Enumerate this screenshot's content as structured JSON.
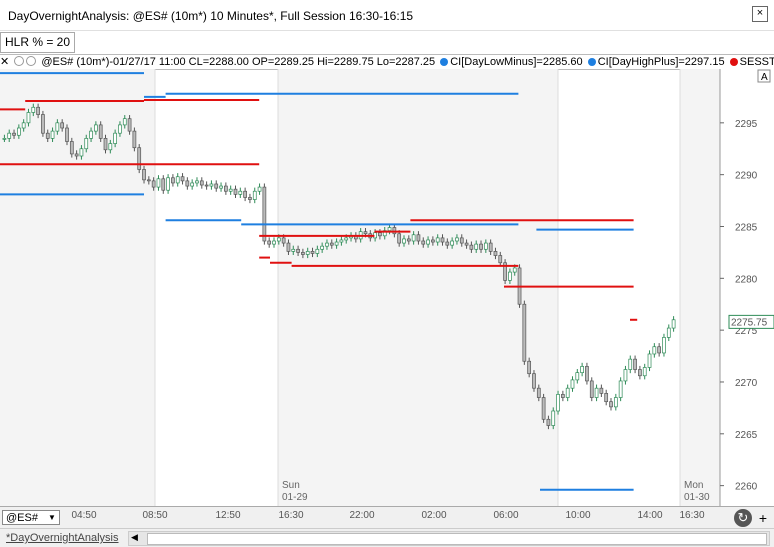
{
  "window": {
    "title": "DayOvernightAnalysis: @ES# (10m*) 10 Minutes*, Full Session 16:30-16:15",
    "close": "×"
  },
  "hlr_label": "HLR % = 20",
  "infobar": {
    "close_glyph": "✕",
    "main": "@ES# (10m*)-01/27/17 11:00 CL=2288.00 OP=2289.25 Hi=2289.75 Lo=2287.25",
    "ind1": "CI[DayLowMinus]=2285.60",
    "ind2": "CI[DayHighPlus]=2297.15",
    "ind3": "SESST[",
    "auto": "A"
  },
  "colors": {
    "up": "#2e8b57",
    "down": "#555555",
    "red": "#e01010",
    "blue": "#1e7fe0",
    "session": "#f4f4f4"
  },
  "chart_data": {
    "type": "candlestick",
    "y_axis": {
      "ticks": [
        2295,
        2290,
        2285,
        2280,
        2275,
        2270,
        2265,
        2260
      ],
      "min": 2259,
      "max": 2300
    },
    "last_price": "2275.75",
    "x_ticks": [
      "04:50",
      "08:50",
      "12:50",
      "16:30",
      "22:00",
      "02:00",
      "06:00",
      "10:00",
      "14:00",
      "16:30"
    ],
    "day_labels": [
      {
        "day": "Sun",
        "date": "01-29"
      },
      {
        "day": "Mon",
        "date": "01-30"
      }
    ],
    "red_lines": [
      {
        "x0": 0,
        "x1": 0.035,
        "y": 2296.3
      },
      {
        "x0": 0.035,
        "x1": 0.2,
        "y": 2297.1
      },
      {
        "x0": 0.2,
        "x1": 0.36,
        "y": 2297.2
      },
      {
        "x0": 0,
        "x1": 0.36,
        "y": 2291.0
      },
      {
        "x0": 0.36,
        "x1": 0.375,
        "y": 2282.0
      },
      {
        "x0": 0.375,
        "x1": 0.405,
        "y": 2281.5
      },
      {
        "x0": 0.405,
        "x1": 0.72,
        "y": 2281.2
      },
      {
        "x0": 0.36,
        "x1": 0.52,
        "y": 2284.1
      },
      {
        "x0": 0.52,
        "x1": 0.57,
        "y": 2284.5
      },
      {
        "x0": 0.57,
        "x1": 0.88,
        "y": 2285.6
      },
      {
        "x0": 0.7,
        "x1": 0.88,
        "y": 2279.2
      },
      {
        "x0": 0.875,
        "x1": 0.885,
        "y": 2276.0
      }
    ],
    "blue_lines": [
      {
        "x0": 0,
        "x1": 0.2,
        "y": 2299.8
      },
      {
        "x0": 0.2,
        "x1": 0.23,
        "y": 2297.5
      },
      {
        "x0": 0.23,
        "x1": 0.72,
        "y": 2297.8
      },
      {
        "x0": 0,
        "x1": 0.2,
        "y": 2288.1
      },
      {
        "x0": 0.23,
        "x1": 0.335,
        "y": 2285.6
      },
      {
        "x0": 0.335,
        "x1": 0.72,
        "y": 2285.2
      },
      {
        "x0": 0.745,
        "x1": 0.88,
        "y": 2284.7
      },
      {
        "x0": 0.75,
        "x1": 0.88,
        "y": 2259.6
      }
    ],
    "series_close": [
      2293.5,
      2294,
      2293.8,
      2294.5,
      2295,
      2296,
      2296.5,
      2295.8,
      2294,
      2293.5,
      2294.2,
      2295,
      2294.5,
      2293.2,
      2292,
      2291.8,
      2292.5,
      2293.5,
      2294.2,
      2294.8,
      2293.5,
      2292.4,
      2293,
      2294,
      2294.8,
      2295.4,
      2294.2,
      2292.6,
      2290.5,
      2289.5,
      2289.4,
      2288.8,
      2289.6,
      2288.5,
      2289.7,
      2289.2,
      2289.8,
      2289.4,
      2288.9,
      2289.2,
      2289.4,
      2289,
      2288.9,
      2289.1,
      2288.7,
      2288.9,
      2288.4,
      2288.6,
      2288.1,
      2288.4,
      2287.8,
      2287.6,
      2288.4,
      2288.8,
      2283.6,
      2283.3,
      2283.6,
      2283.9,
      2283.4,
      2282.6,
      2282.8,
      2282.5,
      2282.3,
      2282.6,
      2282.4,
      2282.8,
      2283.1,
      2283.4,
      2283.2,
      2283.5,
      2283.7,
      2283.9,
      2284.1,
      2283.8,
      2284.5,
      2284.3,
      2283.9,
      2284.4,
      2284.1,
      2284.6,
      2284.9,
      2284.3,
      2283.4,
      2283.8,
      2283.6,
      2284.2,
      2283.6,
      2283.3,
      2283.7,
      2283.5,
      2283.9,
      2283.5,
      2283.2,
      2283.6,
      2283.9,
      2283.4,
      2283.2,
      2282.8,
      2283.3,
      2282.8,
      2283.4,
      2282.6,
      2282.2,
      2281.5,
      2279.8,
      2280.6,
      2281,
      2277.5,
      2272,
      2270.8,
      2269.4,
      2268.5,
      2266.4,
      2265.8,
      2267.2,
      2268.8,
      2268.5,
      2269.4,
      2270.2,
      2270.9,
      2271.5,
      2270.1,
      2268.5,
      2269.4,
      2268.9,
      2268.1,
      2267.6,
      2268.5,
      2270.1,
      2271.2,
      2272.2,
      2271.2,
      2270.6,
      2271.4,
      2272.7,
      2273.4,
      2272.8,
      2274.3,
      2275.2,
      2276
    ]
  },
  "bottom": {
    "symbol": "@ES#",
    "refresh": "↻",
    "plus": "+",
    "tab": "*DayOvernightAnalysis"
  }
}
